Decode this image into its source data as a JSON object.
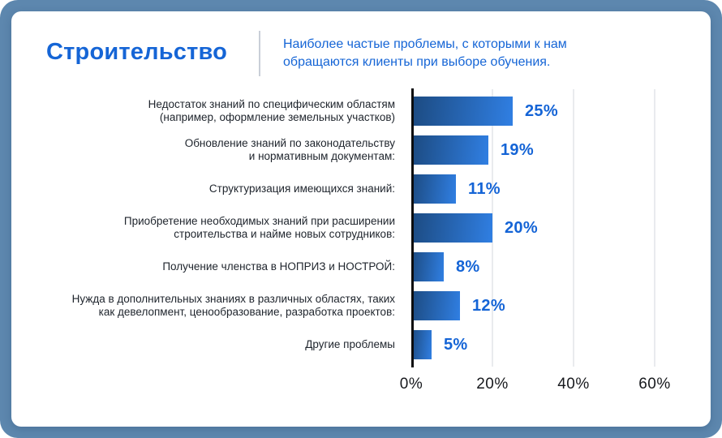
{
  "header": {
    "title": "Строительство",
    "subtitle": "Наиболее частые проблемы, с которыми к нам\nобращаются клиенты при выборе обучения.",
    "accent_color": "#1565d6"
  },
  "chart_data": {
    "type": "bar",
    "orientation": "horizontal",
    "title": "Строительство",
    "subtitle": "Наиболее частые проблемы, с которыми к нам обращаются клиенты при выборе обучения.",
    "categories": [
      "Недостаток знаний по специфическим областям\n(например, оформление земельных участков)",
      "Обновление знаний по законодательству\nи нормативным документам:",
      "Структуризация имеющихся знаний:",
      "Приобретение необходимых знаний при расширении\nстроительства и найме новых сотрудников:",
      "Получение членства в НОПРИЗ и НОСТРОЙ:",
      "Нужда в дополнительных знаниях в различных областях, таких\nкак девелопмент, ценообразование, разработка проектов:",
      "Другие проблемы"
    ],
    "values": [
      25,
      19,
      11,
      20,
      8,
      12,
      5
    ],
    "value_suffix": "%",
    "x_tick_labels": [
      "0%",
      "20%",
      "40%",
      "60%"
    ],
    "x_tick_values": [
      0,
      20,
      40,
      60
    ],
    "xlim": [
      0,
      70
    ],
    "grid": true,
    "legend": false,
    "bar_gradient": [
      "#1c4a80",
      "#307fe3"
    ],
    "value_label_color": "#1464d6",
    "axis_color": "#0c0d0f",
    "gridline_color": "#e9ebee"
  },
  "frame": {
    "outer_background": "#5d87ae",
    "card_background": "#ffffff"
  }
}
